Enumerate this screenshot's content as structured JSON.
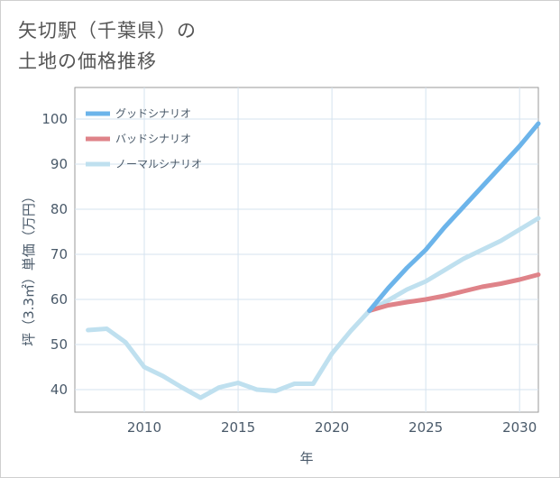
{
  "title": {
    "line1": "矢切駅（千葉県）の",
    "line2": "土地の価格推移"
  },
  "chart_data": {
    "type": "line",
    "xlabel": "年",
    "ylabel": "坪（3.3㎡）単価（万円）",
    "xlim": [
      2006.3,
      2031
    ],
    "ylim": [
      35,
      107
    ],
    "x_ticks": [
      2010,
      2015,
      2020,
      2025,
      2030
    ],
    "y_ticks": [
      40,
      50,
      60,
      70,
      80,
      90,
      100
    ],
    "grid": true,
    "legend_position": "top-left",
    "series": [
      {
        "name": "グッドシナリオ",
        "color": "#6cb4ea",
        "width": 5,
        "x": [
          2022,
          2023,
          2024,
          2025,
          2026,
          2027,
          2028,
          2029,
          2030,
          2031
        ],
        "y": [
          57.5,
          62.5,
          67,
          71,
          76,
          80.5,
          85,
          89.5,
          94,
          99
        ]
      },
      {
        "name": "バッドシナリオ",
        "color": "#df8389",
        "width": 5,
        "x": [
          2022,
          2023,
          2024,
          2025,
          2026,
          2027,
          2028,
          2029,
          2030,
          2031
        ],
        "y": [
          57.5,
          58.7,
          59.4,
          60,
          60.8,
          61.8,
          62.8,
          63.5,
          64.4,
          65.5
        ]
      },
      {
        "name": "ノーマルシナリオ",
        "color": "#bfe0ef",
        "width": 5,
        "x": [
          2007,
          2008,
          2009,
          2010,
          2011,
          2012,
          2013,
          2014,
          2015,
          2016,
          2017,
          2018,
          2019,
          2020,
          2021,
          2022,
          2023,
          2024,
          2025,
          2026,
          2027,
          2028,
          2029,
          2030,
          2031
        ],
        "y": [
          53.2,
          53.5,
          50.5,
          45,
          43,
          40.5,
          38.2,
          40.5,
          41.5,
          40,
          39.7,
          41.3,
          41.3,
          48,
          53,
          57.5,
          59.8,
          62.2,
          64,
          66.5,
          69,
          71,
          73,
          75.5,
          78
        ]
      }
    ]
  }
}
